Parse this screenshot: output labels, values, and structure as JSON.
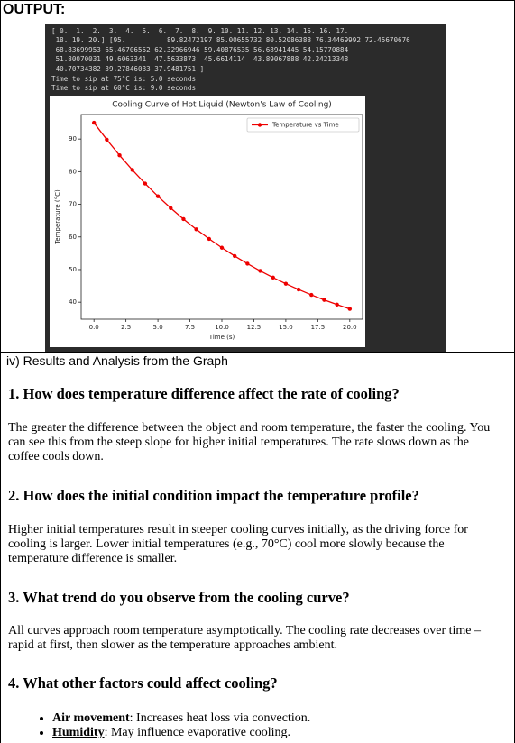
{
  "header": {
    "title": "OUTPUT:"
  },
  "console": {
    "lines": [
      "[ 0.  1.  2.  3.  4.  5.  6.  7.  8.  9. 10. 11. 12. 13. 14. 15. 16. 17.",
      " 18. 19. 20.] [95.          89.82472197 85.00655732 80.52086388 76.34469992 72.45670676",
      " 68.83699953 65.46706552 62.32966946 59.40876535 56.68941445 54.15770884",
      " 51.80070031 49.6063341  47.5633873  45.6614114  43.89067888 42.24213348",
      " 40.70734382 39.27846033 37.9481751 ]",
      "Time to sip at 75°C is: 5.0 seconds",
      "Time to sip at 60°C is: 9.0 seconds"
    ]
  },
  "chart_data": {
    "type": "line",
    "title": "Cooling Curve of Hot Liquid (Newton's Law of Cooling)",
    "x_label": "Time (s)",
    "y_label": "Temperature (°C)",
    "x": [
      0,
      1,
      2,
      3,
      4,
      5,
      6,
      7,
      8,
      9,
      10,
      11,
      12,
      13,
      14,
      15,
      16,
      17,
      18,
      19,
      20
    ],
    "series": [
      {
        "name": "Temperature vs Time",
        "color": "#ee0000",
        "values": [
          95,
          89.82472197,
          85.00655732,
          80.52086388,
          76.34469992,
          72.45670676,
          68.83699953,
          65.46706552,
          62.32966946,
          59.40876535,
          56.68941445,
          54.15770884,
          51.80070031,
          49.6063341,
          47.5633873,
          45.6614114,
          43.89067888,
          42.24213348,
          40.70734382,
          39.27846033,
          37.9481751
        ]
      }
    ],
    "xlim": [
      -1,
      21
    ],
    "ylim": [
      34.8,
      97.5
    ],
    "xticks": [
      {
        "value": 0,
        "label": "0.0"
      },
      {
        "value": 2.5,
        "label": "2.5"
      },
      {
        "value": 5,
        "label": "5.0"
      },
      {
        "value": 7.5,
        "label": "7.5"
      },
      {
        "value": 10,
        "label": "10.0"
      },
      {
        "value": 12.5,
        "label": "12.5"
      },
      {
        "value": 15,
        "label": "15.0"
      },
      {
        "value": 17.5,
        "label": "17.5"
      },
      {
        "value": 20,
        "label": "20.0"
      }
    ],
    "yticks": [
      40,
      50,
      60,
      70,
      80,
      90
    ],
    "grid": false,
    "legend": "upper right"
  },
  "analysis": {
    "title": "iv) Results and Analysis from the Graph",
    "sections": [
      {
        "heading": "1. How does temperature difference affect the rate of cooling?",
        "text": "The greater the difference between the object and room temperature, the faster the cooling. You can see this from the steep slope for higher initial temperatures. The rate slows down as the coffee cools down."
      },
      {
        "heading": "2. How does the initial condition impact the temperature profile?",
        "text": "Higher initial temperatures result in steeper cooling curves initially, as the driving force for cooling is larger. Lower initial temperatures (e.g., 70°C) cool more slowly because the temperature difference is smaller."
      },
      {
        "heading": "3. What trend do you observe from the cooling curve?",
        "text": "All curves approach room temperature asymptotically. The cooling rate decreases over time – rapid at first, then slower as the temperature approaches ambient."
      },
      {
        "heading": "4. What other factors could affect cooling?",
        "bullets": [
          {
            "term": "Air movement",
            "text": ": Increases heat loss via convection."
          },
          {
            "term": "Humidity",
            "text": ": May influence evaporative cooling."
          }
        ]
      }
    ]
  }
}
